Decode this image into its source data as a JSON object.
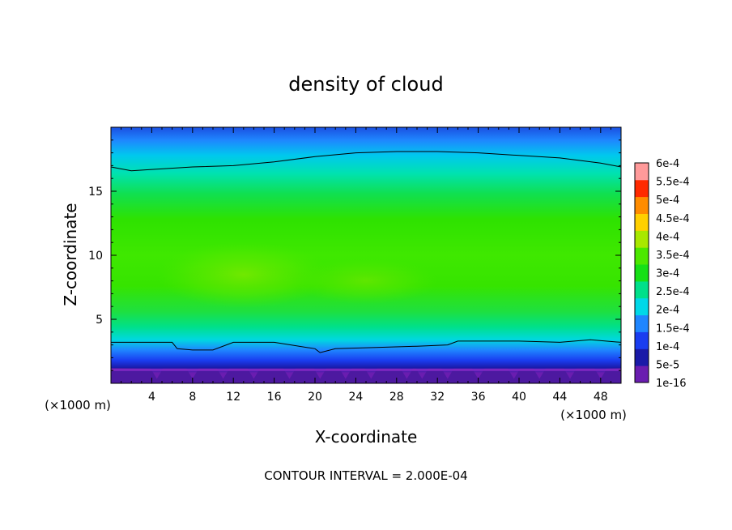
{
  "chart_data": {
    "type": "heatmap",
    "title": "density of cloud",
    "xlabel": "X-coordinate",
    "ylabel": "Z-coordinate",
    "x_unit": "(×1000 m)",
    "y_unit": "(×1000 m)",
    "xlim": [
      0,
      50
    ],
    "ylim": [
      0,
      20
    ],
    "x_ticks": [
      4,
      8,
      12,
      16,
      20,
      24,
      28,
      32,
      36,
      40,
      44,
      48
    ],
    "y_ticks": [
      5,
      10,
      15
    ],
    "colorbar": {
      "labels": [
        "1e-16",
        "5e-5",
        "1e-4",
        "1.5e-4",
        "2e-4",
        "2.5e-4",
        "3e-4",
        "3.5e-4",
        "4e-4",
        "4.5e-4",
        "5e-4",
        "5.5e-4",
        "6e-4"
      ],
      "values": [
        0,
        5e-05,
        0.0001,
        0.00015,
        0.0002,
        0.00025,
        0.0003,
        0.00035,
        0.0004,
        0.00045,
        0.0005,
        0.00055,
        0.0006
      ],
      "colors": [
        "#6a1db0",
        "#1a1aa8",
        "#1a3df0",
        "#1f86ff",
        "#00d8e8",
        "#00e08a",
        "#16e016",
        "#4ce800",
        "#a8e800",
        "#ffd000",
        "#ff8c00",
        "#ff2a00",
        "#ff9a9a"
      ]
    },
    "contour_interval": "CONTOUR INTERVAL = 2.000E-04",
    "contour_lines": [
      {
        "level": 0.0001,
        "x": [
          0,
          2,
          4,
          8,
          12,
          16,
          20,
          24,
          28,
          32,
          36,
          40,
          44,
          48,
          50
        ],
        "z": [
          16.9,
          16.6,
          16.7,
          16.9,
          17.0,
          17.3,
          17.7,
          18.0,
          18.1,
          18.1,
          18.0,
          17.8,
          17.6,
          17.2,
          16.9
        ]
      },
      {
        "level": 0.0001,
        "x": [
          0,
          4,
          6,
          6.5,
          8,
          10,
          12,
          16,
          20,
          20.5,
          22,
          26,
          30,
          33,
          34,
          40,
          44,
          47,
          50
        ],
        "z": [
          3.2,
          3.2,
          3.2,
          2.7,
          2.6,
          2.6,
          3.2,
          3.2,
          2.7,
          2.4,
          2.7,
          2.8,
          2.9,
          3.0,
          3.3,
          3.3,
          3.2,
          3.4,
          3.2
        ]
      }
    ]
  }
}
